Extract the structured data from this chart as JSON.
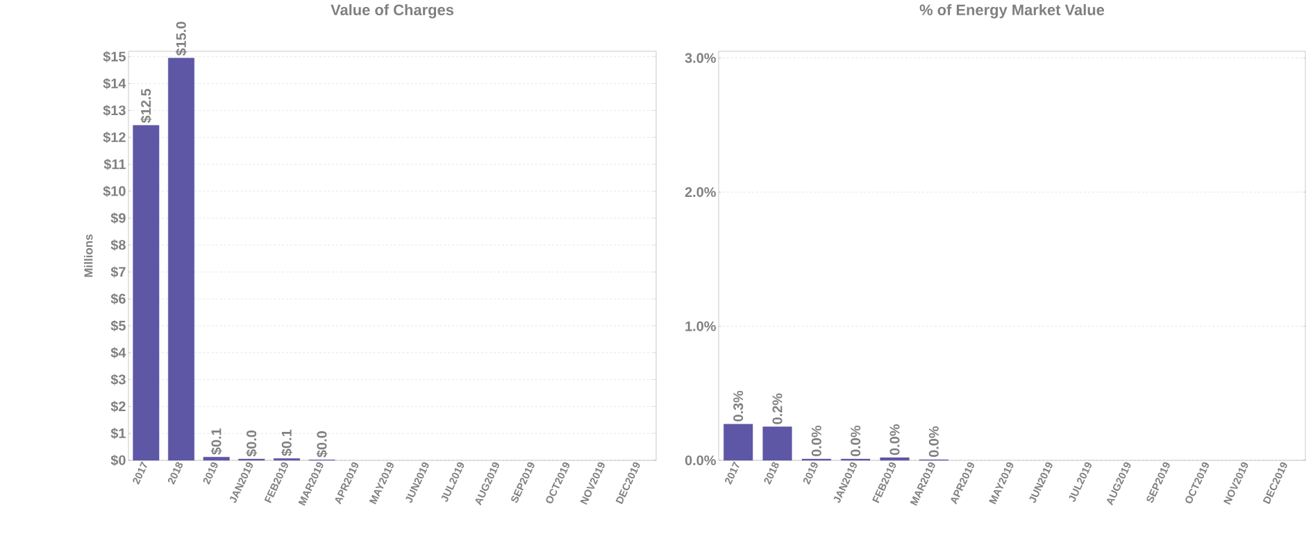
{
  "chart_data": [
    {
      "type": "bar",
      "title": "Value of Charges",
      "ylabel": "Millions",
      "color": "#5e57a5",
      "categories": [
        "2017",
        "2018",
        "2019",
        "JAN2019",
        "FEB2019",
        "MAR2019",
        "APR2019",
        "MAY2019",
        "JUN2019",
        "JUL2019",
        "AUG2019",
        "SEP2019",
        "OCT2019",
        "NOV2019",
        "DEC2019"
      ],
      "values": [
        12.45,
        14.95,
        0.12,
        0.05,
        0.07,
        0.02,
        null,
        null,
        null,
        null,
        null,
        null,
        null,
        null,
        null
      ],
      "value_labels": [
        "$12.5",
        "$15.0",
        "$0.1",
        "$0.0",
        "$0.1",
        "$0.0",
        null,
        null,
        null,
        null,
        null,
        null,
        null,
        null,
        null
      ],
      "ylim": [
        0,
        15.2
      ],
      "yticks": [
        {
          "value": 0,
          "label": "$0"
        },
        {
          "value": 1,
          "label": "$1"
        },
        {
          "value": 2,
          "label": "$2"
        },
        {
          "value": 3,
          "label": "$3"
        },
        {
          "value": 4,
          "label": "$4"
        },
        {
          "value": 5,
          "label": "$5"
        },
        {
          "value": 6,
          "label": "$6"
        },
        {
          "value": 7,
          "label": "$7"
        },
        {
          "value": 8,
          "label": "$8"
        },
        {
          "value": 9,
          "label": "$9"
        },
        {
          "value": 10,
          "label": "$10"
        },
        {
          "value": 11,
          "label": "$11"
        },
        {
          "value": 12,
          "label": "$12"
        },
        {
          "value": 13,
          "label": "$13"
        },
        {
          "value": 14,
          "label": "$14"
        },
        {
          "value": 15,
          "label": "$15"
        }
      ],
      "grid": "y"
    },
    {
      "type": "bar",
      "title": "% of Energy Market Value",
      "color": "#5e57a5",
      "categories": [
        "2017",
        "2018",
        "2019",
        "JAN2019",
        "FEB2019",
        "MAR2019",
        "APR2019",
        "MAY2019",
        "JUN2019",
        "JUL2019",
        "AUG2019",
        "SEP2019",
        "OCT2019",
        "NOV2019",
        "DEC2019"
      ],
      "values": [
        0.27,
        0.25,
        0.01,
        0.01,
        0.02,
        0.005,
        null,
        null,
        null,
        null,
        null,
        null,
        null,
        null,
        null
      ],
      "value_labels": [
        "0.3%",
        "0.2%",
        "0.0%",
        "0.0%",
        "0.0%",
        "0.0%",
        null,
        null,
        null,
        null,
        null,
        null,
        null,
        null,
        null
      ],
      "ylim": [
        0,
        3.05
      ],
      "yticks": [
        {
          "value": 0,
          "label": "0.0%"
        },
        {
          "value": 1,
          "label": "1.0%"
        },
        {
          "value": 2,
          "label": "2.0%"
        },
        {
          "value": 3,
          "label": "3.0%"
        }
      ],
      "grid": "y"
    }
  ]
}
